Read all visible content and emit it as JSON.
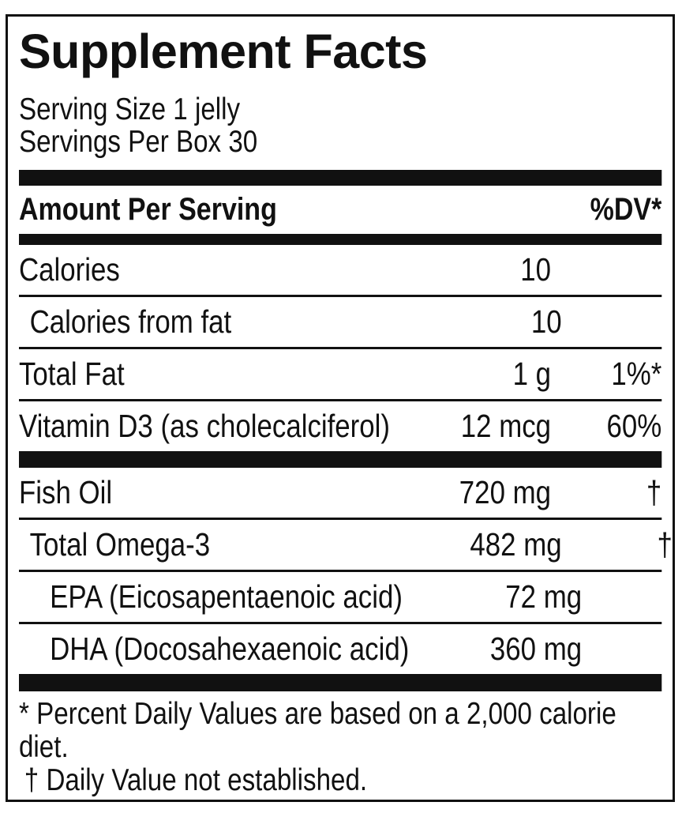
{
  "label": {
    "title": "Supplement Facts",
    "serving_lines": [
      "Serving Size 1 jelly",
      "Servings Per Box 30"
    ],
    "column_header": {
      "left": "Amount Per Serving",
      "right": "%DV*"
    },
    "sections": [
      {
        "rows": [
          {
            "name": "Calories",
            "amount": "10",
            "dv": "",
            "indent": 0
          },
          {
            "name": "Calories from fat",
            "amount": "10",
            "dv": "",
            "indent": 1
          },
          {
            "name": "Total Fat",
            "amount": "1 g",
            "dv": "1%*",
            "indent": 0
          },
          {
            "name": "Vitamin D3 (as cholecalciferol)",
            "amount": "12 mcg",
            "dv": "60%",
            "indent": 0
          }
        ]
      },
      {
        "rows": [
          {
            "name": "Fish Oil",
            "amount": "720 mg",
            "dv": "†",
            "indent": 0
          },
          {
            "name": "Total Omega-3",
            "amount": "482 mg",
            "dv": "†",
            "indent": 1
          },
          {
            "name": "EPA (Eicosapentaenoic acid)",
            "amount": "72 mg",
            "dv": "†",
            "indent": 2
          },
          {
            "name": "DHA (Docosahexaenoic acid)",
            "amount": "360 mg",
            "dv": "†",
            "indent": 2
          }
        ]
      }
    ],
    "footnotes": [
      "* Percent Daily Values are based on a 2,000 calorie diet.",
      "† Daily Value not established."
    ],
    "colors": {
      "ink": "#111111",
      "background": "#ffffff"
    }
  }
}
